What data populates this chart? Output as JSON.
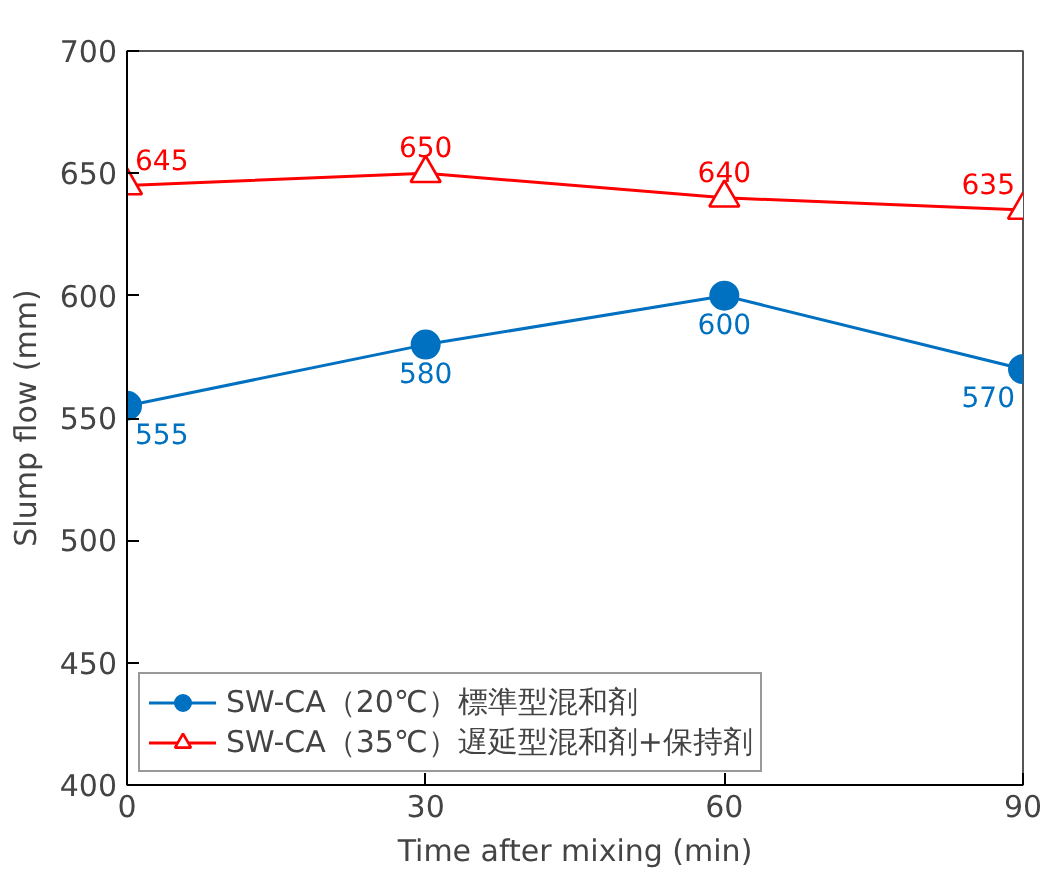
{
  "chart_data": {
    "type": "line",
    "xlabel": "Time after mixing (min)",
    "ylabel": "Slump flow (mm)",
    "x": [
      0,
      30,
      60,
      90
    ],
    "series": [
      {
        "name": "SW-CA（20℃）標準型混和剤",
        "color": "#0070c0",
        "values": [
          555,
          580,
          600,
          570
        ],
        "marker": "circle"
      },
      {
        "name": "SW-CA（35℃）遅延型混和剤+保持剤",
        "color": "#ff0000",
        "values": [
          645,
          650,
          640,
          635
        ],
        "marker": "triangle"
      }
    ],
    "xlim": [
      0,
      90
    ],
    "ylim": [
      400,
      700
    ],
    "xticks": [
      0,
      30,
      60,
      90
    ],
    "yticks": [
      400,
      450,
      500,
      550,
      600,
      650,
      700
    ],
    "grid": false,
    "legend": "bottom left",
    "data_labels": true,
    "line_style": "solid"
  }
}
